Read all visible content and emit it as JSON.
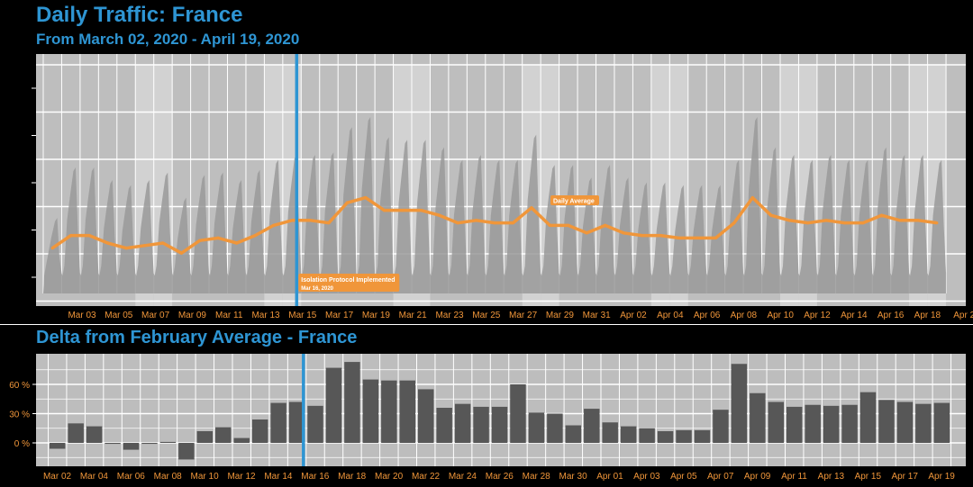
{
  "header": {
    "title": "Daily Traffic: France",
    "subtitle": "From March 02, 2020 - April 19, 2020"
  },
  "panel2": {
    "title": "Delta from February Average - France"
  },
  "colors": {
    "accent": "#2e95d3",
    "orange": "#f0963a",
    "bar": "#575757",
    "panel": "#bdbdbd",
    "traffic": "#9a9a9a"
  },
  "chart_data": [
    {
      "type": "area",
      "x_tick_labels": [
        "Mar 03",
        "Mar 05",
        "Mar 07",
        "Mar 09",
        "Mar 11",
        "Mar 13",
        "Mar 15",
        "Mar 17",
        "Mar 19",
        "Mar 21",
        "Mar 23",
        "Mar 25",
        "Mar 27",
        "Mar 29",
        "Mar 31",
        "Apr 02",
        "Apr 04",
        "Apr 06",
        "Apr 08",
        "Apr 10",
        "Apr 12",
        "Apr 14",
        "Apr 16",
        "Apr 18",
        "Apr 2"
      ],
      "dates": [
        "Mar 02",
        "Mar 03",
        "Mar 04",
        "Mar 05",
        "Mar 06",
        "Mar 07",
        "Mar 08",
        "Mar 09",
        "Mar 10",
        "Mar 11",
        "Mar 12",
        "Mar 13",
        "Mar 14",
        "Mar 15",
        "Mar 16",
        "Mar 17",
        "Mar 18",
        "Mar 19",
        "Mar 20",
        "Mar 21",
        "Mar 22",
        "Mar 23",
        "Mar 24",
        "Mar 25",
        "Mar 26",
        "Mar 27",
        "Mar 28",
        "Mar 29",
        "Mar 30",
        "Mar 31",
        "Apr 01",
        "Apr 02",
        "Apr 03",
        "Apr 04",
        "Apr 05",
        "Apr 06",
        "Apr 07",
        "Apr 08",
        "Apr 09",
        "Apr 10",
        "Apr 11",
        "Apr 12",
        "Apr 13",
        "Apr 14",
        "Apr 15",
        "Apr 16",
        "Apr 17",
        "Apr 18",
        "Apr 19"
      ],
      "series": [
        {
          "name": "Daily Average",
          "values": [
            2.3,
            2.8,
            2.8,
            2.5,
            2.3,
            2.4,
            2.5,
            2.1,
            2.6,
            2.7,
            2.5,
            2.8,
            3.2,
            3.4,
            3.4,
            3.3,
            4.1,
            4.3,
            3.8,
            3.8,
            3.8,
            3.6,
            3.3,
            3.4,
            3.3,
            3.3,
            3.9,
            3.2,
            3.2,
            2.9,
            3.2,
            2.9,
            2.8,
            2.8,
            2.7,
            2.7,
            2.7,
            3.3,
            4.3,
            3.6,
            3.4,
            3.3,
            3.4,
            3.3,
            3.3,
            3.6,
            3.4,
            3.4,
            3.3
          ]
        }
      ],
      "hourly_peaks": [
        3.5,
        5.5,
        5.5,
        5,
        4.8,
        5,
        5.3,
        4.3,
        5.2,
        5.3,
        5,
        5.4,
        5.8,
        6,
        6,
        6.1,
        7.1,
        7.5,
        6.7,
        6.6,
        6.6,
        6.3,
        5.8,
        6,
        5.8,
        5.8,
        6.8,
        5.6,
        5.6,
        5.1,
        5.6,
        5.1,
        4.9,
        4.9,
        4.8,
        4.8,
        4.8,
        5.8,
        7.5,
        6.3,
        6,
        5.8,
        6,
        5.8,
        5.8,
        6.3,
        6,
        6,
        5.8
      ],
      "ylim": [
        0,
        10
      ],
      "annotations": [
        {
          "label": "Isolation Protocol Implemented",
          "date_text": "Mar 16, 2020",
          "x": "Mar 16"
        },
        {
          "label": "Daily Average",
          "x": "Mar 29"
        }
      ]
    },
    {
      "type": "bar",
      "categories": [
        "Mar 02",
        "Mar 03",
        "Mar 04",
        "Mar 05",
        "Mar 06",
        "Mar 07",
        "Mar 08",
        "Mar 09",
        "Mar 10",
        "Mar 11",
        "Mar 12",
        "Mar 13",
        "Mar 14",
        "Mar 15",
        "Mar 16",
        "Mar 17",
        "Mar 18",
        "Mar 19",
        "Mar 20",
        "Mar 21",
        "Mar 22",
        "Mar 23",
        "Mar 24",
        "Mar 25",
        "Mar 26",
        "Mar 27",
        "Mar 28",
        "Mar 29",
        "Mar 30",
        "Mar 31",
        "Apr 01",
        "Apr 02",
        "Apr 03",
        "Apr 04",
        "Apr 05",
        "Apr 06",
        "Apr 07",
        "Apr 08",
        "Apr 09",
        "Apr 10",
        "Apr 11",
        "Apr 12",
        "Apr 13",
        "Apr 14",
        "Apr 15",
        "Apr 16",
        "Apr 17",
        "Apr 18",
        "Apr 19"
      ],
      "values": [
        -6,
        20,
        17,
        -1,
        -7,
        -1,
        1,
        -17,
        12,
        16,
        5,
        24,
        41,
        42,
        38,
        77,
        83,
        65,
        64,
        64,
        55,
        36,
        40,
        37,
        37,
        60,
        31,
        30,
        18,
        35,
        21,
        17,
        15,
        12,
        13,
        13,
        34,
        81,
        51,
        42,
        37,
        39,
        38,
        39,
        52,
        44,
        42,
        40,
        41
      ],
      "x_tick_labels": [
        "Mar 02",
        "Mar 04",
        "Mar 06",
        "Mar 08",
        "Mar 10",
        "Mar 12",
        "Mar 14",
        "Mar 16",
        "Mar 18",
        "Mar 20",
        "Mar 22",
        "Mar 24",
        "Mar 26",
        "Mar 28",
        "Mar 30",
        "Apr 01",
        "Apr 03",
        "Apr 05",
        "Apr 07",
        "Apr 09",
        "Apr 11",
        "Apr 13",
        "Apr 15",
        "Apr 17",
        "Apr 19"
      ],
      "y_ticks": [
        0,
        30,
        60
      ],
      "y_tick_labels": [
        "0 %",
        "30 %",
        "60 %"
      ],
      "ylim": [
        -22,
        90
      ],
      "vline": "Mar 16"
    }
  ]
}
